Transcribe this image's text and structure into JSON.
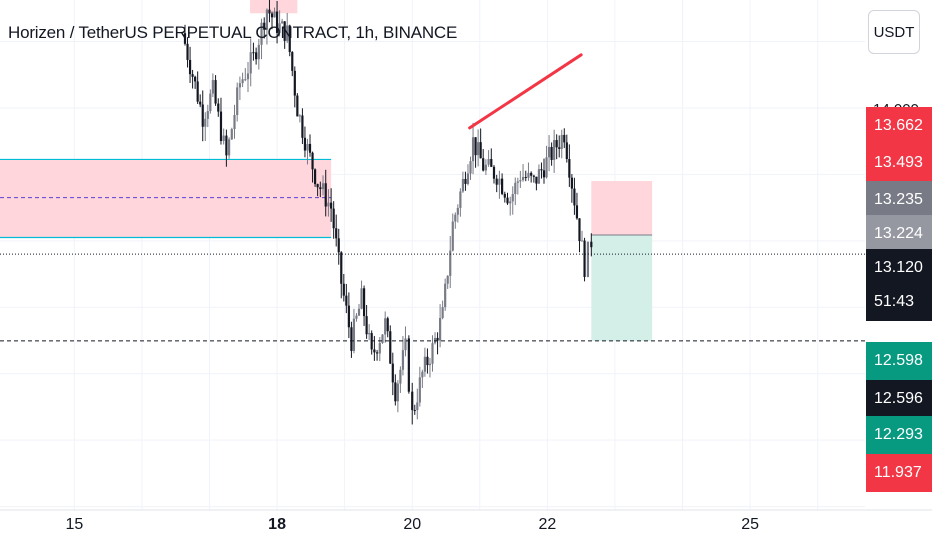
{
  "header": {
    "title": "Horizen / TetherUS PERPETUAL CONTRACT, 1h, BINANCE",
    "currency": "USDT"
  },
  "price_scale": {
    "top_tick": "14.000",
    "labels": [
      {
        "text": "13.662",
        "color": "#f23645"
      },
      {
        "text": "13.493",
        "color": "#f23645"
      },
      {
        "text": "13.235",
        "color": "#787b86"
      },
      {
        "text": "13.224",
        "color": "#9598a1"
      },
      {
        "text": "13.120",
        "color": "#131722"
      },
      {
        "text": "51:43",
        "color": "#131722"
      },
      {
        "text": "12.598",
        "color": "#089981"
      },
      {
        "text": "12.596",
        "color": "#131722"
      },
      {
        "text": "12.293",
        "color": "#089981"
      },
      {
        "text": "11.937",
        "color": "#f23645"
      }
    ]
  },
  "time_axis": {
    "labels": [
      "15",
      "18",
      "20",
      "22",
      "25"
    ],
    "bold": [
      "18"
    ]
  },
  "chart_data": {
    "type": "candlestick",
    "symbol": "Horizen / TetherUS PERPETUAL CONTRACT",
    "interval": "1h",
    "exchange": "BINANCE",
    "x_range_days": [
      13.9,
      26.7
    ],
    "ylim": [
      11.7,
      14.65
    ],
    "current_price": 13.12,
    "countdown": "51:43",
    "grid": true,
    "key_levels": [
      14.0,
      13.662,
      13.493,
      13.235,
      13.224,
      13.12,
      12.598,
      12.596,
      12.293,
      11.937
    ],
    "zones": [
      {
        "kind": "supply",
        "y_low": 13.22,
        "y_high": 13.69,
        "x_start": 13.9,
        "x_end": 18.8,
        "mid": 13.46
      },
      {
        "kind": "supply",
        "y_low": 14.57,
        "y_high": 14.7,
        "x_start": 17.6,
        "x_end": 18.3
      }
    ],
    "position": {
      "type": "short",
      "entry": 13.235,
      "stop": 13.56,
      "target": 12.598,
      "x_start": 22.65,
      "x_end": 23.55
    },
    "trendline": {
      "x1": 20.85,
      "y1": 13.88,
      "x2": 22.5,
      "y2": 14.32
    },
    "horizontal_lines": [
      {
        "y": 13.12,
        "style": "dotted"
      },
      {
        "y": 12.598,
        "style": "dashed"
      }
    ],
    "path": [
      [
        16.6,
        14.45
      ],
      [
        16.75,
        14.2
      ],
      [
        16.9,
        13.95
      ],
      [
        17.05,
        14.1
      ],
      [
        17.25,
        13.7
      ],
      [
        17.45,
        14.15
      ],
      [
        17.65,
        14.3
      ],
      [
        17.85,
        14.6
      ],
      [
        18.0,
        14.5
      ],
      [
        18.15,
        14.45
      ],
      [
        18.3,
        14.0
      ],
      [
        18.45,
        13.75
      ],
      [
        18.6,
        13.55
      ],
      [
        18.8,
        13.4
      ],
      [
        18.95,
        12.95
      ],
      [
        19.1,
        12.6
      ],
      [
        19.25,
        12.85
      ],
      [
        19.4,
        12.5
      ],
      [
        19.6,
        12.7
      ],
      [
        19.75,
        12.3
      ],
      [
        19.9,
        12.55
      ],
      [
        20.0,
        12.15
      ],
      [
        20.15,
        12.4
      ],
      [
        20.3,
        12.55
      ],
      [
        20.45,
        12.75
      ],
      [
        20.6,
        13.3
      ],
      [
        20.75,
        13.55
      ],
      [
        20.9,
        13.8
      ],
      [
        21.05,
        13.65
      ],
      [
        21.25,
        13.6
      ],
      [
        21.45,
        13.45
      ],
      [
        21.6,
        13.6
      ],
      [
        21.8,
        13.55
      ],
      [
        21.95,
        13.65
      ],
      [
        22.1,
        13.75
      ],
      [
        22.25,
        13.85
      ],
      [
        22.4,
        13.45
      ],
      [
        22.55,
        13.05
      ],
      [
        22.65,
        13.2
      ]
    ]
  },
  "colors": {
    "bull": "#787b86",
    "bear": "#131722",
    "supply_fill": "#ffd6db",
    "zone_border": "#00bcd4",
    "profit_fill": "#d4efe8",
    "trendline": "#f23645",
    "grid": "#f0f3fa"
  }
}
